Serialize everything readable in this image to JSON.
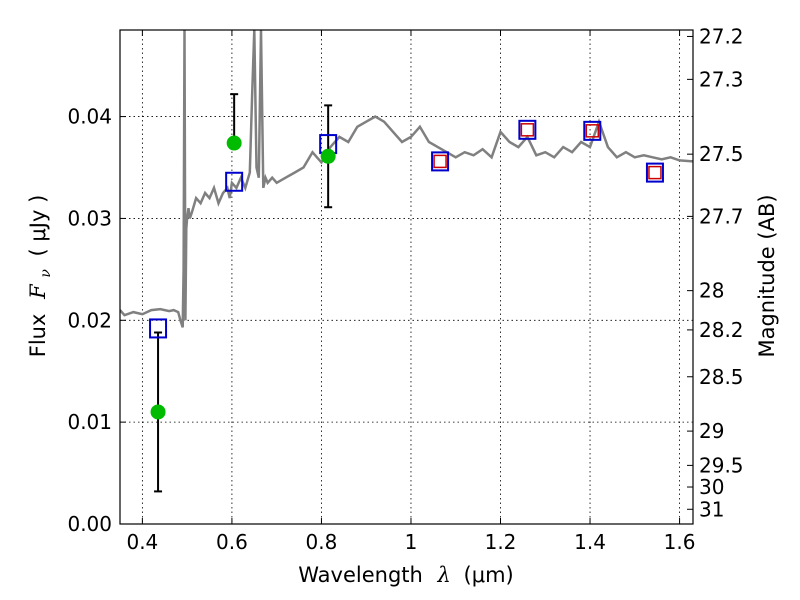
{
  "chart_data": {
    "type": "scatter",
    "title": "",
    "xlabel": "Wavelength",
    "xlabel_symbol": "λ",
    "xlabel_unit": "(μm)",
    "ylabel": "Flux",
    "ylabel_symbol": "F",
    "ylabel_subscript": "ν",
    "ylabel_unit": "( μJy )",
    "y2label": "Magnitude (AB)",
    "xlim": [
      0.35,
      1.63
    ],
    "ylim": [
      0.0,
      0.0485
    ],
    "grid": true,
    "legend": "none",
    "x_ticks": [
      {
        "value": 0.4,
        "label": "0.4"
      },
      {
        "value": 0.6,
        "label": "0.6"
      },
      {
        "value": 0.8,
        "label": "0.8"
      },
      {
        "value": 1.0,
        "label": "1"
      },
      {
        "value": 1.2,
        "label": "1.2"
      },
      {
        "value": 1.4,
        "label": "1.4"
      },
      {
        "value": 1.6,
        "label": "1.6"
      }
    ],
    "y_ticks": [
      {
        "value": 0.0,
        "label": "0.00"
      },
      {
        "value": 0.01,
        "label": "0.01"
      },
      {
        "value": 0.02,
        "label": "0.02"
      },
      {
        "value": 0.03,
        "label": "0.03"
      },
      {
        "value": 0.04,
        "label": "0.04"
      }
    ],
    "y2_ticks": [
      {
        "value": 27.2,
        "label": "27.2"
      },
      {
        "value": 27.3,
        "label": "27.3"
      },
      {
        "value": 27.5,
        "label": "27.5"
      },
      {
        "value": 27.7,
        "label": "27.7"
      },
      {
        "value": 28.0,
        "label": "28"
      },
      {
        "value": 28.2,
        "label": "28.2"
      },
      {
        "value": 28.5,
        "label": "28.5"
      },
      {
        "value": 29.0,
        "label": "29"
      },
      {
        "value": 29.5,
        "label": "29.5"
      },
      {
        "value": 30.0,
        "label": "30"
      },
      {
        "value": 31.0,
        "label": "31"
      }
    ],
    "colors": {
      "spectrum": "#808080",
      "model_box": "#0000cc",
      "inner_box": "#cc0000",
      "detection": "#00bb00",
      "errorbar": "#000000"
    },
    "series": [
      {
        "kind": "spectrum",
        "x": [
          0.35,
          0.36,
          0.38,
          0.4,
          0.42,
          0.44,
          0.46,
          0.47,
          0.48,
          0.485,
          0.49,
          0.492,
          0.494,
          0.496,
          0.498,
          0.5,
          0.503,
          0.506,
          0.51,
          0.52,
          0.53,
          0.54,
          0.55,
          0.56,
          0.57,
          0.58,
          0.59,
          0.595,
          0.6,
          0.61,
          0.62,
          0.63,
          0.64,
          0.645,
          0.65,
          0.655,
          0.66,
          0.665,
          0.67,
          0.675,
          0.68,
          0.69,
          0.7,
          0.72,
          0.74,
          0.76,
          0.78,
          0.8,
          0.82,
          0.84,
          0.86,
          0.88,
          0.9,
          0.92,
          0.94,
          0.96,
          0.98,
          1.0,
          1.02,
          1.04,
          1.06,
          1.08,
          1.1,
          1.12,
          1.14,
          1.16,
          1.18,
          1.2,
          1.22,
          1.24,
          1.26,
          1.28,
          1.3,
          1.32,
          1.34,
          1.36,
          1.38,
          1.4,
          1.42,
          1.44,
          1.46,
          1.48,
          1.5,
          1.52,
          1.54,
          1.56,
          1.58,
          1.6,
          1.63
        ],
        "y": [
          0.021,
          0.0205,
          0.0208,
          0.0206,
          0.021,
          0.0211,
          0.0209,
          0.021,
          0.0208,
          0.02,
          0.0193,
          0.025,
          0.0485,
          0.02,
          0.029,
          0.03,
          0.031,
          0.03,
          0.0305,
          0.032,
          0.0315,
          0.0325,
          0.032,
          0.033,
          0.0315,
          0.0325,
          0.033,
          0.032,
          0.0335,
          0.033,
          0.034,
          0.033,
          0.0345,
          0.042,
          0.0485,
          0.035,
          0.034,
          0.0485,
          0.033,
          0.034,
          0.0335,
          0.034,
          0.0335,
          0.034,
          0.0345,
          0.035,
          0.0365,
          0.0355,
          0.037,
          0.038,
          0.0375,
          0.039,
          0.0395,
          0.04,
          0.0395,
          0.0385,
          0.0375,
          0.038,
          0.039,
          0.0375,
          0.037,
          0.0365,
          0.036,
          0.0365,
          0.0362,
          0.0368,
          0.036,
          0.0385,
          0.0375,
          0.037,
          0.038,
          0.0362,
          0.0365,
          0.036,
          0.037,
          0.0365,
          0.0375,
          0.037,
          0.0395,
          0.037,
          0.036,
          0.0365,
          0.036,
          0.0362,
          0.036,
          0.0358,
          0.036,
          0.0357,
          0.0356
        ]
      },
      {
        "kind": "model_boxes",
        "x": [
          0.435,
          0.605,
          0.815,
          1.065,
          1.26,
          1.405,
          1.545
        ],
        "y": [
          0.0192,
          0.0336,
          0.0373,
          0.0356,
          0.0387,
          0.0386,
          0.0345
        ],
        "inner_box_indices": [
          3,
          4,
          5,
          6
        ]
      },
      {
        "kind": "detections",
        "x": [
          0.435,
          0.605,
          0.815
        ],
        "y": [
          0.011,
          0.0374,
          0.0361
        ],
        "yerr_low": [
          0.0032,
          0.0374,
          0.0311
        ],
        "yerr_high": [
          0.0188,
          0.0422,
          0.0411
        ]
      }
    ]
  }
}
